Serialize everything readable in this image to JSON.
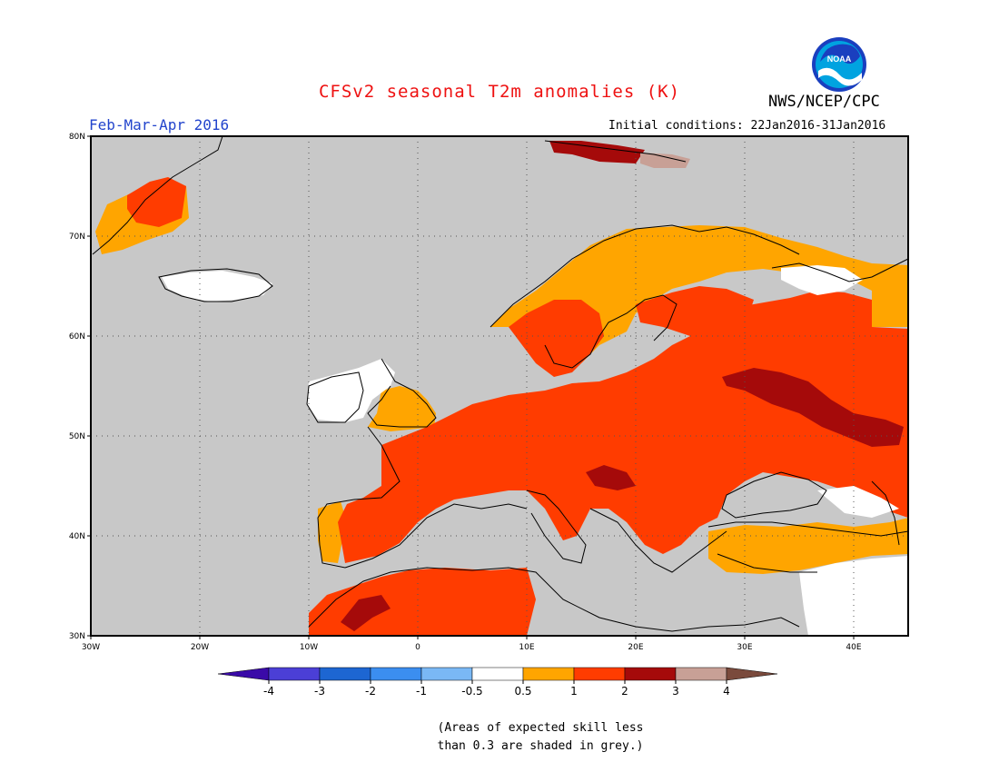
{
  "title": "CFSv2 seasonal T2m anomalies (K)",
  "period": "Feb-Mar-Apr 2016",
  "agency": "NWS/NCEP/CPC",
  "logo_text": "NOAA",
  "initial_conditions": "Initial conditions: 22Jan2016-31Jan2016",
  "note_line1": "(Areas of expected skill less",
  "note_line2": "than 0.3 are shaded in grey.)",
  "colors": {
    "title": "#ee1111",
    "period": "#2244cc",
    "grey": "#c8c8c8",
    "land_line": "#000000"
  },
  "map": {
    "lon_range": [
      -30,
      45
    ],
    "lat_range": [
      30,
      80
    ],
    "lon_ticks": [
      "30W",
      "20W",
      "10W",
      "0",
      "10E",
      "20E",
      "30E",
      "40E"
    ],
    "lat_ticks": [
      "30N",
      "40N",
      "50N",
      "60N",
      "70N",
      "80N"
    ],
    "grid": "dotted"
  },
  "legend": {
    "labels": [
      "-4",
      "-3",
      "-2",
      "-1",
      "-0.5",
      "0.5",
      "1",
      "2",
      "3",
      "4"
    ],
    "colors": [
      "#3a0aa8",
      "#4b3fd6",
      "#1d66d2",
      "#3b8ef0",
      "#7ab8f5",
      "#ffffff",
      "#ffa500",
      "#ff3c00",
      "#a50a0a",
      "#c8a096",
      "#7a4a3c"
    ]
  }
}
